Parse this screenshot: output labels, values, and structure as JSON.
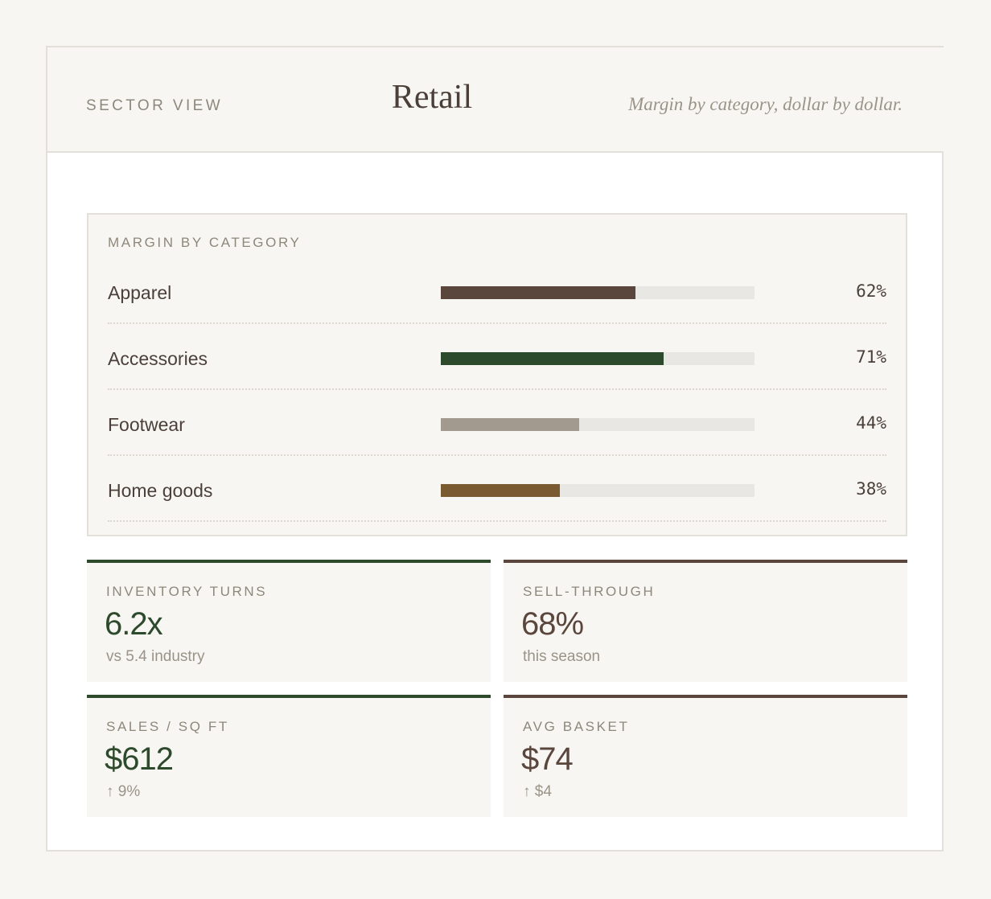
{
  "header": {
    "eyebrow": "SECTOR VIEW",
    "title": "Retail",
    "tagline": "Margin by category, dollar by dollar."
  },
  "chart_data": {
    "type": "bar",
    "title": "MARGIN BY CATEGORY",
    "categories": [
      "Apparel",
      "Accessories",
      "Footwear",
      "Home goods"
    ],
    "values": [
      62,
      71,
      44,
      38
    ],
    "value_labels": [
      "62%",
      "71%",
      "44%",
      "38%"
    ],
    "colors": [
      "#5a463d",
      "#2e4a2c",
      "#a39a8f",
      "#7a5a30"
    ],
    "ylim": [
      0,
      100
    ],
    "orientation": "horizontal"
  },
  "stats": [
    {
      "label": "INVENTORY TURNS",
      "value": "6.2x",
      "note": "vs 5.4 industry",
      "accent": "#2e4a2c"
    },
    {
      "label": "SELL-THROUGH",
      "value": "68%",
      "note": "this season",
      "accent": "#5a463d"
    },
    {
      "label": "SALES / SQ FT",
      "value": "$612",
      "note": "↑ 9%",
      "accent": "#2e4a2c"
    },
    {
      "label": "AVG BASKET",
      "value": "$74",
      "note": "↑ $4",
      "accent": "#5a463d"
    }
  ],
  "colors": {
    "background": "#f8f6f2",
    "card": "#ffffff",
    "text": "#4a3f39",
    "muted": "#8e877b",
    "track": "#e9e7e4"
  }
}
